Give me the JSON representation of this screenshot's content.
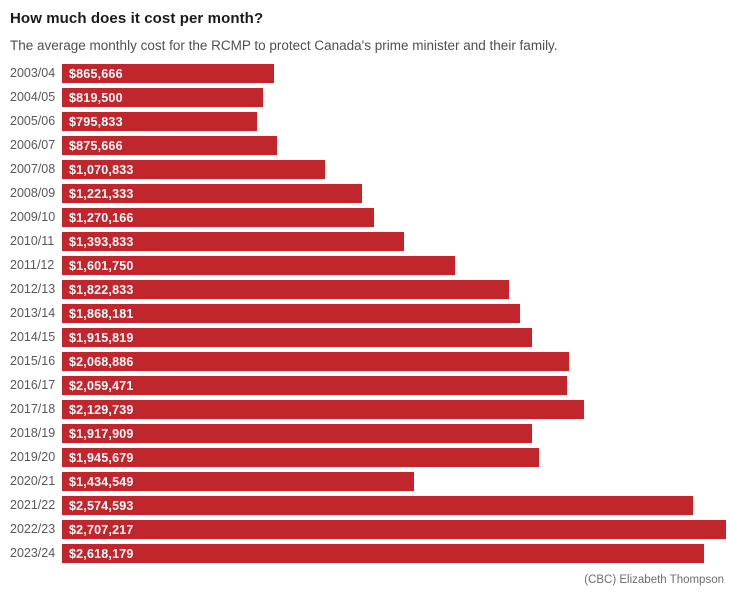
{
  "header": {
    "title": "How much does it cost per month?",
    "subtitle": "The average monthly cost for the RCMP to protect Canada's prime minister and their family."
  },
  "footer": {
    "attribution": "(CBC) Elizabeth Thompson"
  },
  "colors": {
    "bar": "#c2262d",
    "title_text": "#1a1a1a",
    "subtitle_text": "#4f4f4f",
    "year_label_text": "#585858",
    "value_label_text": "#ffffff",
    "attribution_text": "#6e6e6e",
    "background": "#ffffff"
  },
  "chart_data": {
    "type": "bar",
    "orientation": "horizontal",
    "title": "How much does it cost per month?",
    "subtitle": "The average monthly cost for the RCMP to protect Canada's prime minister and their family.",
    "xlabel": "",
    "ylabel": "",
    "xlim": [
      0,
      2707217
    ],
    "grid": false,
    "legend": false,
    "categories": [
      "2003/04",
      "2004/05",
      "2005/06",
      "2006/07",
      "2007/08",
      "2008/09",
      "2009/10",
      "2010/11",
      "2011/12",
      "2012/13",
      "2013/14",
      "2014/15",
      "2015/16",
      "2016/17",
      "2017/18",
      "2018/19",
      "2019/20",
      "2020/21",
      "2021/22",
      "2022/23",
      "2023/24"
    ],
    "values": [
      865666,
      819500,
      795833,
      875666,
      1070833,
      1221333,
      1270166,
      1393833,
      1601750,
      1822833,
      1868181,
      1915819,
      2068886,
      2059471,
      2129739,
      1917909,
      1945679,
      1434549,
      2574593,
      2707217,
      2618179
    ],
    "value_labels": [
      "$865,666",
      "$819,500",
      "$795,833",
      "$875,666",
      "$1,070,833",
      "$1,221,333",
      "$1,270,166",
      "$1,393,833",
      "$1,601,750",
      "$1,822,833",
      "$1,868,181",
      "$1,915,819",
      "$2,068,886",
      "$2,059,471",
      "$2,129,739",
      "$1,917,909",
      "$1,945,679",
      "$1,434,549",
      "$2,574,593",
      "$2,707,217",
      "$2,618,179"
    ]
  }
}
